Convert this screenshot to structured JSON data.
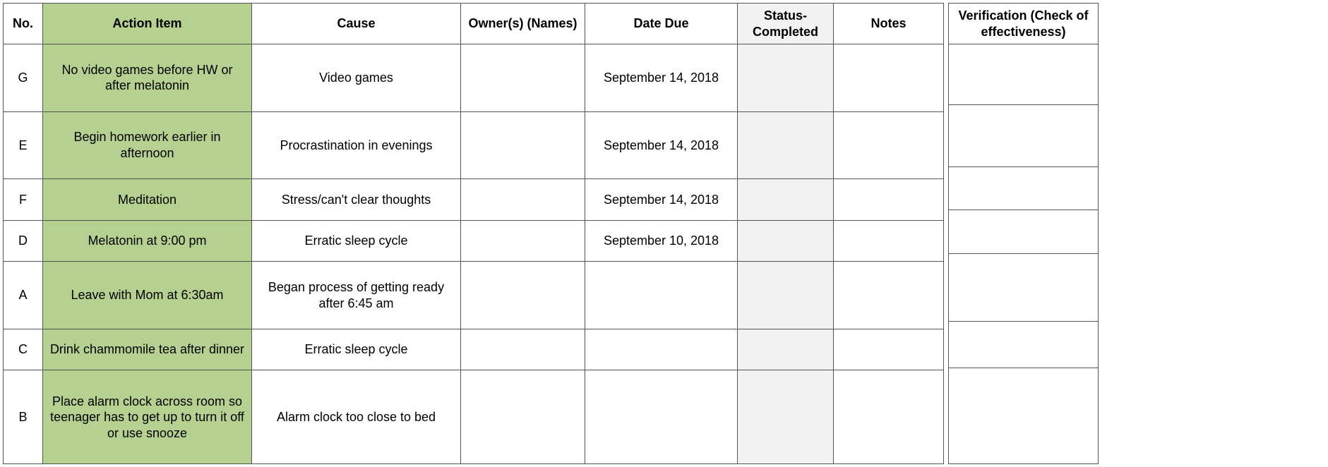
{
  "colors": {
    "action_header_bg": "#b5d091",
    "status_header_bg": "#f2f2f2",
    "action_cell_bg": "#b5d091",
    "status_cell_bg": "#f2f2f2",
    "border": "#555555",
    "text": "#000000"
  },
  "main_table": {
    "headers": {
      "no": "No.",
      "action": "Action Item",
      "cause": "Cause",
      "owner": "Owner(s) (Names)",
      "date": "Date Due",
      "status": "Status-Completed",
      "notes": "Notes"
    },
    "rows": [
      {
        "no": "G",
        "action": "No video games before HW or after melatonin",
        "cause": "Video games",
        "owner": "",
        "date": "September 14, 2018",
        "status": "",
        "notes": ""
      },
      {
        "no": "E",
        "action": "Begin homework earlier in afternoon",
        "cause": "Procrastination in evenings",
        "owner": "",
        "date": "September 14, 2018",
        "status": "",
        "notes": ""
      },
      {
        "no": "F",
        "action": "Meditation",
        "cause": "Stress/can't clear thoughts",
        "owner": "",
        "date": "September 14, 2018",
        "status": "",
        "notes": ""
      },
      {
        "no": "D",
        "action": "Melatonin at 9:00 pm",
        "cause": "Erratic sleep cycle",
        "owner": "",
        "date": "September 10, 2018",
        "status": "",
        "notes": ""
      },
      {
        "no": "A",
        "action": "Leave with Mom at 6:30am",
        "cause": "Began process of getting ready after 6:45 am",
        "owner": "",
        "date": "",
        "status": "",
        "notes": ""
      },
      {
        "no": "C",
        "action": "Drink chammomile tea after dinner",
        "cause": "Erratic sleep cycle",
        "owner": "",
        "date": "",
        "status": "",
        "notes": ""
      },
      {
        "no": "B",
        "action": "Place alarm clock across room so teenager has to get up to turn it off or use snooze",
        "cause": "Alarm clock too close to bed",
        "owner": "",
        "date": "",
        "status": "",
        "notes": ""
      }
    ]
  },
  "verification_table": {
    "header": "Verification (Check of effectiveness)",
    "rows": [
      "",
      "",
      "",
      "",
      "",
      "",
      ""
    ]
  }
}
